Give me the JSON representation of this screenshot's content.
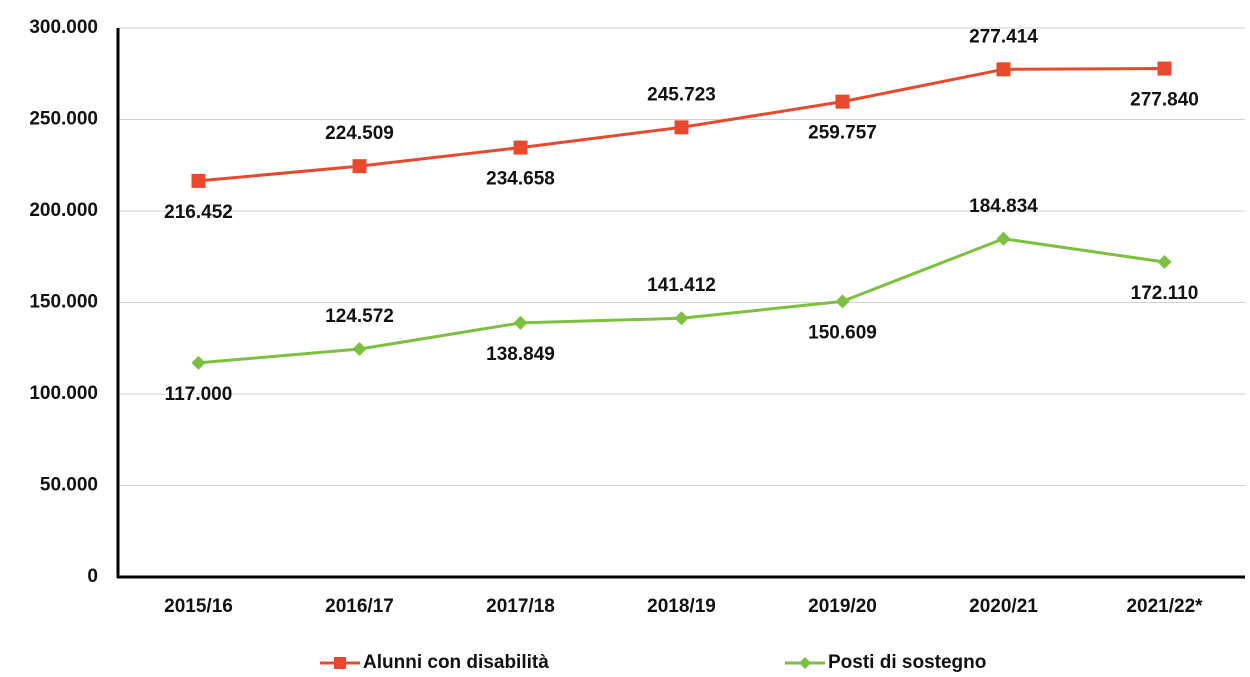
{
  "chart_data": {
    "type": "line",
    "categories": [
      "2015/16",
      "2016/17",
      "2017/18",
      "2018/19",
      "2019/20",
      "2020/21",
      "2021/22*"
    ],
    "series": [
      {
        "name": "Alunni con disabilità",
        "color": "#e8482e",
        "marker": "square",
        "values": [
          216452,
          224509,
          234658,
          245723,
          259757,
          277414,
          277840
        ],
        "value_labels": [
          "216.452",
          "224.509",
          "234.658",
          "245.723",
          "259.757",
          "277.414",
          "277.840"
        ]
      },
      {
        "name": "Posti di sostegno",
        "color": "#7dbf3f",
        "marker": "diamond",
        "values": [
          117000,
          124572,
          138849,
          141412,
          150609,
          184834,
          172110
        ],
        "value_labels": [
          "117.000",
          "124.572",
          "138.849",
          "141.412",
          "150.609",
          "184.834",
          "172.110"
        ]
      }
    ],
    "ylim": [
      0,
      300000
    ],
    "yticks": [
      0,
      {
        "value": 50000,
        "label": "50.000"
      },
      {
        "value": 100000,
        "label": "100.000"
      },
      {
        "value": 150000,
        "label": "150.000"
      },
      {
        "value": 200000,
        "label": "200.000"
      },
      {
        "value": 250000,
        "label": "250.000"
      },
      {
        "value": 300000,
        "label": "300.000"
      }
    ],
    "grid": true,
    "legend": "bottom"
  }
}
